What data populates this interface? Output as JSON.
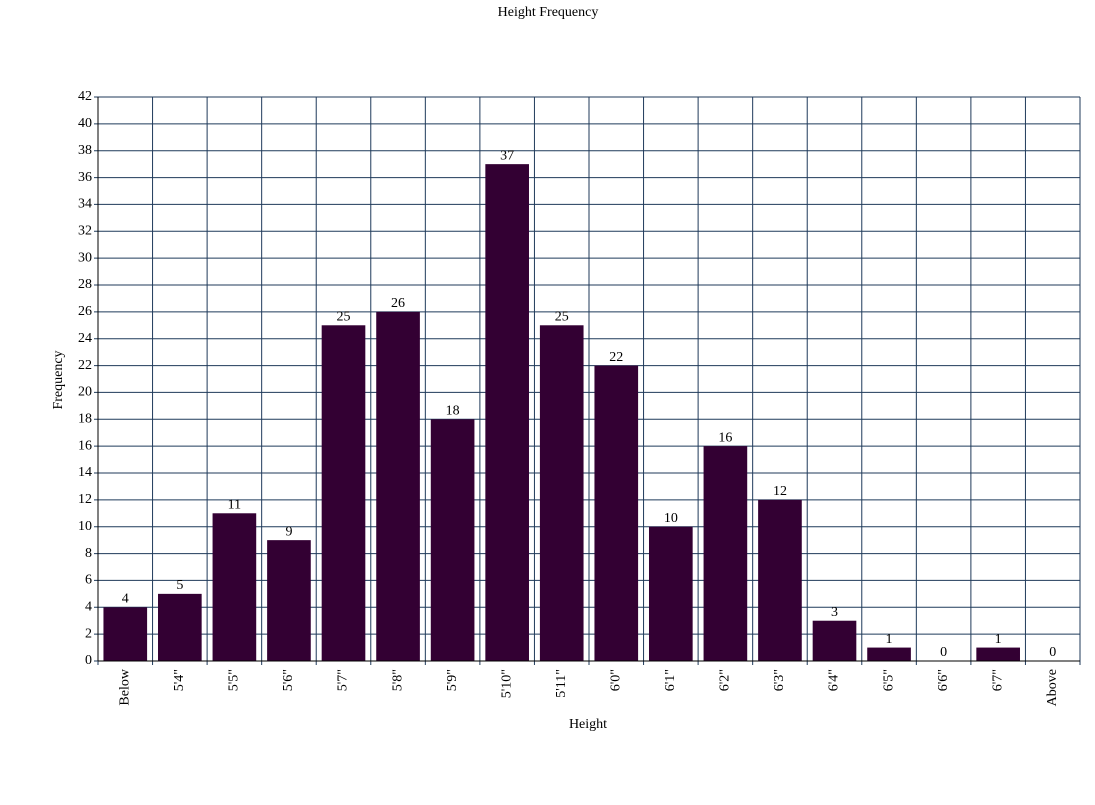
{
  "chart_data": {
    "type": "bar",
    "title": "Height Frequency",
    "x_label": "Height",
    "y_label": "Frequency",
    "categories": [
      "Below",
      "5'4\"",
      "5'5\"",
      "5'6\"",
      "5'7\"",
      "5'8\"",
      "5'9\"",
      "5'10\"",
      "5'11\"",
      "6'0\"",
      "6'1\"",
      "6'2\"",
      "6'3\"",
      "6'4\"",
      "6'5\"",
      "6'6\"",
      "6'7\"",
      "Above"
    ],
    "values": [
      4,
      5,
      11,
      9,
      25,
      26,
      18,
      37,
      25,
      22,
      10,
      16,
      12,
      3,
      1,
      0,
      1,
      0
    ],
    "color": "#330033",
    "ylim": [
      0,
      42
    ],
    "yticks": [
      0,
      2,
      4,
      6,
      8,
      10,
      12,
      14,
      16,
      18,
      20,
      22,
      24,
      26,
      28,
      30,
      32,
      34,
      36,
      38,
      40,
      42
    ],
    "grid": true,
    "data_labels": true
  }
}
